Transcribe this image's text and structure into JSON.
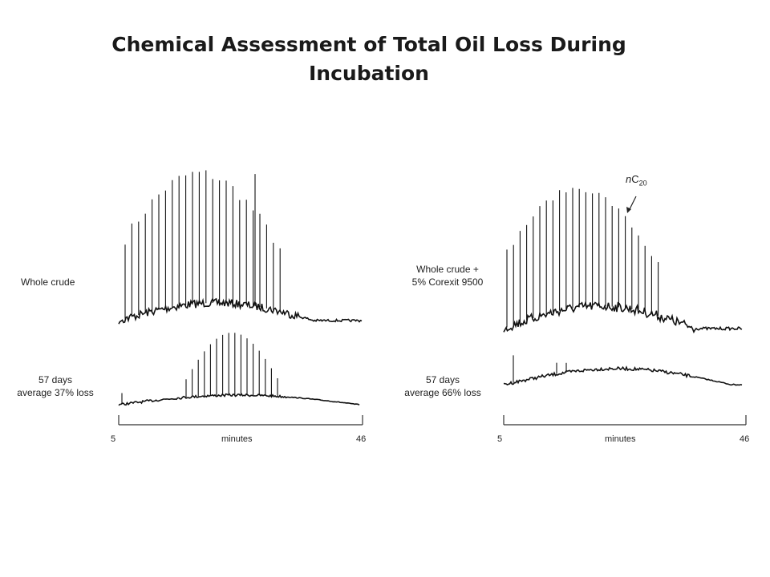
{
  "title": "Chemical Assessment of Total Oil Loss During Incubation",
  "chart_data": [
    {
      "type": "line",
      "panel": "left",
      "series": [
        {
          "name": "Whole crude",
          "label_lines": [
            "Whole crude"
          ]
        },
        {
          "name": "57 days average 37% loss",
          "label_lines": [
            "57 days",
            "average 37% loss"
          ]
        }
      ],
      "x_axis": {
        "label": "minutes",
        "min_label": "5",
        "max_label": "46",
        "range": [
          5,
          46
        ]
      }
    },
    {
      "type": "line",
      "panel": "right",
      "series": [
        {
          "name": "Whole crude + 5% Corexit 9500",
          "label_lines": [
            "Whole crude +",
            "5% Corexit 9500"
          ]
        },
        {
          "name": "57 days average 66% loss",
          "label_lines": [
            "57 days",
            "average 66% loss"
          ]
        }
      ],
      "annotation": {
        "prefix": "n",
        "main": "C",
        "subscript": "20"
      },
      "x_axis": {
        "label": "minutes",
        "min_label": "5",
        "max_label": "46",
        "range": [
          5,
          46
        ]
      }
    }
  ]
}
